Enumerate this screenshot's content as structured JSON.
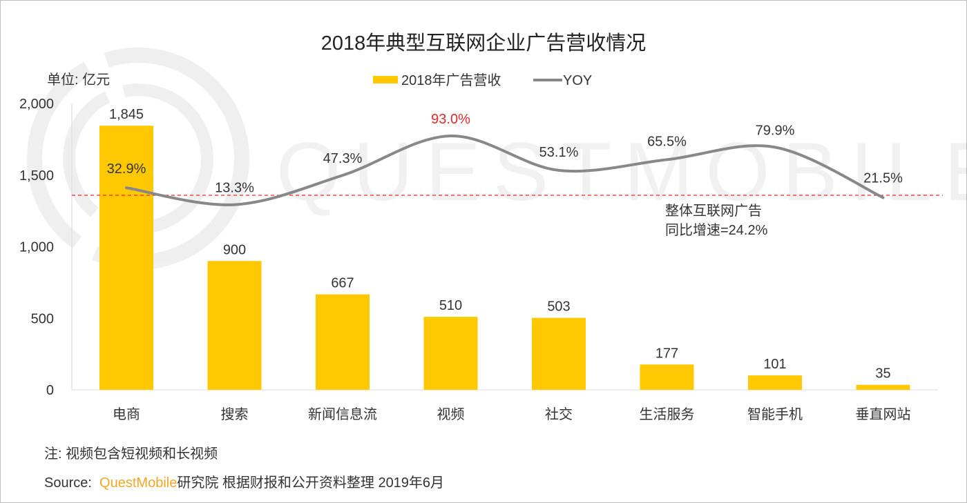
{
  "chart_data": {
    "type": "bar",
    "title": "2018年典型互联网企业广告营收情况",
    "unit_label": "单位: 亿元",
    "categories": [
      "电商",
      "搜索",
      "新闻信息流",
      "视频",
      "社交",
      "生活服务",
      "智能手机",
      "垂直网站"
    ],
    "series": [
      {
        "name": "2018年广告营收",
        "type": "bar",
        "color": "#FFC800",
        "values": [
          1845,
          900,
          667,
          510,
          503,
          177,
          101,
          35
        ],
        "labels": [
          "1,845",
          "900",
          "667",
          "510",
          "503",
          "177",
          "101",
          "35"
        ]
      },
      {
        "name": "YOY",
        "type": "line",
        "color": "#888888",
        "axis": "secondary",
        "values": [
          32.9,
          13.3,
          47.3,
          93.0,
          53.1,
          65.5,
          79.9,
          21.5
        ],
        "labels": [
          "32.9%",
          "13.3%",
          "47.3%",
          "93.0%",
          "53.1%",
          "65.5%",
          "79.9%",
          "21.5%"
        ],
        "highlight_index": 3,
        "highlight_color": "#E8262C"
      }
    ],
    "ylim": [
      0,
      2000
    ],
    "yticks": [
      0,
      500,
      1000,
      1500,
      2000
    ],
    "ytick_labels": [
      "0",
      "500",
      "1,000",
      "1,500",
      "2,000"
    ],
    "reference_line": {
      "value": 24.2,
      "color": "#E8262C",
      "label_line1": "整体互联网广告",
      "label_line2": "同比增速=24.2%"
    },
    "legend_position": "top-center",
    "grid": false
  },
  "watermark": "QUESTMOBILE",
  "note": "注:   视频包含短视频和长视频",
  "source": {
    "prefix": "Source:  ",
    "brand": "QuestMobile",
    "suffix": "研究院  根据财报和公开资料整理 2019年6月",
    "brand_color": "#F5A623"
  }
}
